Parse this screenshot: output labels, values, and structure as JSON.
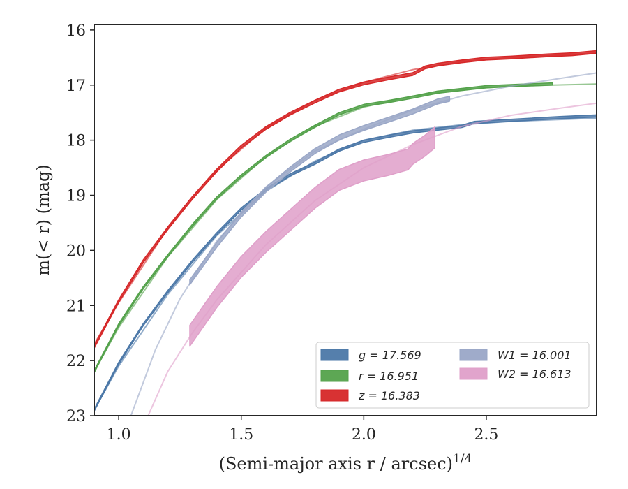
{
  "chart_data": {
    "type": "line",
    "xlabel": "(Semi-major axis r / arcsec)^1/4",
    "ylabel": "m(< r) (mag)",
    "xlim": [
      0.9,
      2.95
    ],
    "ylim": [
      23,
      15.9
    ],
    "y_inverted": true,
    "grid": false,
    "legend_position": "bottom-right",
    "x_ticks": [
      "1.0",
      "1.5",
      "2.0",
      "2.5"
    ],
    "x_tick_values": [
      1.0,
      1.5,
      2.0,
      2.5
    ],
    "y_ticks": [
      "16",
      "17",
      "18",
      "19",
      "20",
      "21",
      "22",
      "23"
    ],
    "y_tick_values": [
      16,
      17,
      18,
      19,
      20,
      21,
      22,
      23
    ],
    "series": [
      {
        "name": "g = 17.569",
        "color": "#4c78a8",
        "band_width": 0.04,
        "obs": [
          [
            0.9,
            22.9
          ],
          [
            1.0,
            22.05
          ],
          [
            1.1,
            21.35
          ],
          [
            1.2,
            20.75
          ],
          [
            1.3,
            20.2
          ],
          [
            1.4,
            19.7
          ],
          [
            1.5,
            19.25
          ],
          [
            1.6,
            18.9
          ],
          [
            1.7,
            18.63
          ],
          [
            1.8,
            18.42
          ],
          [
            1.9,
            18.18
          ],
          [
            2.0,
            18.02
          ],
          [
            2.1,
            17.93
          ],
          [
            2.2,
            17.85
          ],
          [
            2.3,
            17.8
          ],
          [
            2.4,
            17.75
          ],
          [
            2.45,
            17.68
          ],
          [
            2.6,
            17.64
          ],
          [
            2.8,
            17.59
          ],
          [
            2.95,
            17.56
          ]
        ],
        "model": [
          [
            0.9,
            22.9
          ],
          [
            1.0,
            22.1
          ],
          [
            1.2,
            20.8
          ],
          [
            1.4,
            19.73
          ],
          [
            1.6,
            18.93
          ],
          [
            1.8,
            18.38
          ],
          [
            2.0,
            18.0
          ],
          [
            2.2,
            17.82
          ],
          [
            2.4,
            17.72
          ],
          [
            2.6,
            17.66
          ],
          [
            2.95,
            17.6
          ]
        ]
      },
      {
        "name": "r = 16.951",
        "color": "#54a24b",
        "band_width": 0.04,
        "obs": [
          [
            0.9,
            22.2
          ],
          [
            1.0,
            21.35
          ],
          [
            1.1,
            20.68
          ],
          [
            1.2,
            20.1
          ],
          [
            1.3,
            19.55
          ],
          [
            1.4,
            19.05
          ],
          [
            1.5,
            18.65
          ],
          [
            1.6,
            18.3
          ],
          [
            1.7,
            18.0
          ],
          [
            1.8,
            17.75
          ],
          [
            1.9,
            17.52
          ],
          [
            2.0,
            17.37
          ],
          [
            2.1,
            17.3
          ],
          [
            2.2,
            17.22
          ],
          [
            2.3,
            17.13
          ],
          [
            2.4,
            17.08
          ],
          [
            2.5,
            17.03
          ],
          [
            2.6,
            17.01
          ],
          [
            2.77,
            16.98
          ]
        ],
        "model": [
          [
            0.9,
            22.2
          ],
          [
            1.0,
            21.4
          ],
          [
            1.2,
            20.12
          ],
          [
            1.4,
            19.08
          ],
          [
            1.6,
            18.3
          ],
          [
            1.8,
            17.75
          ],
          [
            2.0,
            17.4
          ],
          [
            2.2,
            17.2
          ],
          [
            2.4,
            17.08
          ],
          [
            2.6,
            17.02
          ],
          [
            2.95,
            16.98
          ]
        ]
      },
      {
        "name": "z = 16.383",
        "color": "#d62728",
        "band_width": 0.05,
        "obs": [
          [
            0.9,
            21.75
          ],
          [
            1.0,
            20.92
          ],
          [
            1.1,
            20.2
          ],
          [
            1.2,
            19.6
          ],
          [
            1.3,
            19.05
          ],
          [
            1.4,
            18.55
          ],
          [
            1.5,
            18.12
          ],
          [
            1.6,
            17.78
          ],
          [
            1.7,
            17.52
          ],
          [
            1.8,
            17.3
          ],
          [
            1.9,
            17.1
          ],
          [
            2.0,
            16.97
          ],
          [
            2.1,
            16.88
          ],
          [
            2.2,
            16.8
          ],
          [
            2.25,
            16.68
          ],
          [
            2.3,
            16.63
          ],
          [
            2.4,
            16.57
          ],
          [
            2.5,
            16.52
          ],
          [
            2.6,
            16.5
          ],
          [
            2.75,
            16.46
          ],
          [
            2.85,
            16.44
          ],
          [
            2.95,
            16.4
          ]
        ],
        "model": [
          [
            0.9,
            21.7
          ],
          [
            1.0,
            20.95
          ],
          [
            1.2,
            19.6
          ],
          [
            1.4,
            18.55
          ],
          [
            1.6,
            17.78
          ],
          [
            1.8,
            17.28
          ],
          [
            2.0,
            16.95
          ],
          [
            2.2,
            16.72
          ],
          [
            2.4,
            16.57
          ],
          [
            2.6,
            16.5
          ],
          [
            2.95,
            16.42
          ]
        ]
      },
      {
        "name": "W1 = 16.001",
        "color": "#9aa7c7",
        "band_width": 0.09,
        "obs": [
          [
            1.29,
            20.58
          ],
          [
            1.4,
            19.9
          ],
          [
            1.5,
            19.35
          ],
          [
            1.6,
            18.9
          ],
          [
            1.7,
            18.53
          ],
          [
            1.8,
            18.2
          ],
          [
            1.9,
            17.95
          ],
          [
            2.0,
            17.78
          ],
          [
            2.1,
            17.63
          ],
          [
            2.2,
            17.48
          ],
          [
            2.3,
            17.3
          ],
          [
            2.35,
            17.25
          ]
        ],
        "model": [
          [
            1.05,
            23.0
          ],
          [
            1.15,
            21.8
          ],
          [
            1.25,
            20.88
          ],
          [
            1.4,
            19.83
          ],
          [
            1.6,
            18.85
          ],
          [
            1.8,
            18.2
          ],
          [
            2.0,
            17.8
          ],
          [
            2.2,
            17.45
          ],
          [
            2.4,
            17.2
          ],
          [
            2.6,
            17.02
          ],
          [
            2.8,
            16.88
          ],
          [
            2.95,
            16.78
          ]
        ]
      },
      {
        "name": "W2 = 16.613",
        "color": "#df9fc9",
        "band_width": 0.38,
        "obs": [
          [
            1.29,
            21.55
          ],
          [
            1.4,
            20.85
          ],
          [
            1.5,
            20.3
          ],
          [
            1.6,
            19.85
          ],
          [
            1.7,
            19.45
          ],
          [
            1.8,
            19.05
          ],
          [
            1.9,
            18.72
          ],
          [
            2.0,
            18.55
          ],
          [
            2.1,
            18.45
          ],
          [
            2.18,
            18.35
          ],
          [
            2.2,
            18.25
          ],
          [
            2.25,
            18.1
          ],
          [
            2.29,
            17.95
          ]
        ],
        "model": [
          [
            1.12,
            23.0
          ],
          [
            1.2,
            22.2
          ],
          [
            1.3,
            21.5
          ],
          [
            1.4,
            20.9
          ],
          [
            1.5,
            20.4
          ],
          [
            1.6,
            19.9
          ],
          [
            1.8,
            19.1
          ],
          [
            2.0,
            18.5
          ],
          [
            2.2,
            18.08
          ],
          [
            2.4,
            17.75
          ],
          [
            2.6,
            17.55
          ],
          [
            2.8,
            17.42
          ],
          [
            2.95,
            17.33
          ]
        ]
      }
    ]
  }
}
